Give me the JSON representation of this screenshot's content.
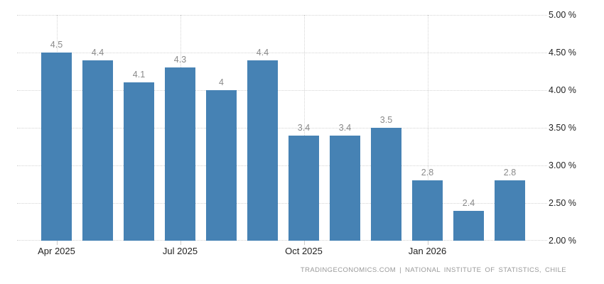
{
  "chart_data": {
    "type": "bar",
    "title": "",
    "values": [
      4.5,
      4.4,
      4.1,
      4.3,
      4.0,
      4.4,
      3.4,
      3.4,
      3.5,
      2.8,
      2.4,
      2.8
    ],
    "value_labels": [
      "4.5",
      "4.4",
      "4.1",
      "4.3",
      "4",
      "4.4",
      "3.4",
      "3.4",
      "3.5",
      "2.8",
      "2.4",
      "2.8"
    ],
    "x_ticks": [
      {
        "bar_index": 0,
        "label": "Apr 2025"
      },
      {
        "bar_index": 3,
        "label": "Jul 2025"
      },
      {
        "bar_index": 6,
        "label": "Oct 2025"
      },
      {
        "bar_index": 9,
        "label": "Jan 2026"
      }
    ],
    "y_ticks": [
      {
        "value": 5.0,
        "label": "5.00 %"
      },
      {
        "value": 4.5,
        "label": "4.50 %"
      },
      {
        "value": 4.0,
        "label": "4.00 %"
      },
      {
        "value": 3.5,
        "label": "3.50 %"
      },
      {
        "value": 3.0,
        "label": "3.00 %"
      },
      {
        "value": 2.5,
        "label": "2.50 %"
      },
      {
        "value": 2.0,
        "label": "2.00 %"
      }
    ],
    "ylim": [
      2.0,
      5.0
    ],
    "grid": {
      "horizontal": true,
      "vertical_at_x_ticks": true,
      "style": "dotted"
    },
    "legend": "none",
    "colors": {
      "bar": "#4682b4",
      "grid": "#d4d4d4",
      "value_label": "#8a8a8a",
      "axis_label": "#222222",
      "attribution": "#9a9a9a",
      "background": "#ffffff"
    }
  },
  "footer": {
    "attribution": "TRADINGECONOMICS.COM | NATIONAL INSTITUTE OF STATISTICS, CHILE"
  }
}
